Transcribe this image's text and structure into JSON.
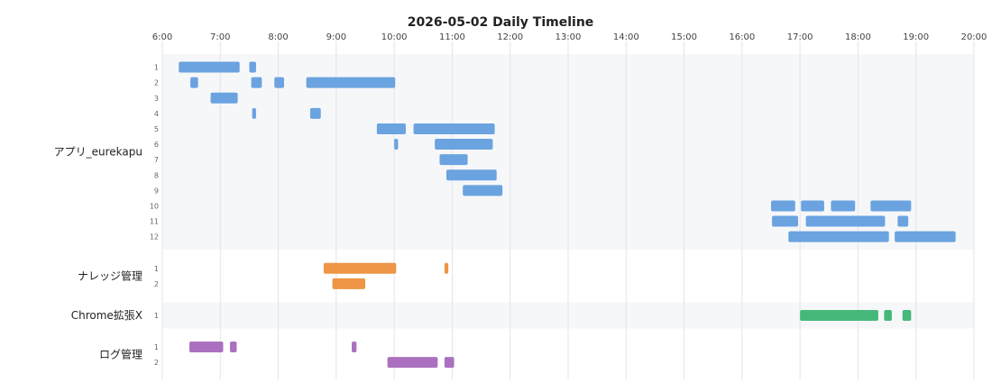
{
  "chart_data": {
    "type": "gantt-timeline",
    "title": "2026-05-02 Daily Timeline",
    "x_ticks": [
      "6:00",
      "7:00",
      "8:00",
      "9:00",
      "10:00",
      "11:00",
      "12:00",
      "13:00",
      "14:00",
      "15:00",
      "16:00",
      "17:00",
      "18:00",
      "19:00",
      "20:00"
    ],
    "x_range": [
      "6:00",
      "20:00"
    ],
    "grid": true,
    "colors": {
      "アプリ_eurekapu": "#6aa3e0",
      "ナレッジ管理": "#ee9546",
      "Chrome拡張X": "#46b87a",
      "ログ管理": "#ab71c0",
      "band": "#f6f7f9",
      "grid": "#e2e4e8"
    },
    "categories": [
      {
        "name": "アプリ_eurekapu",
        "lanes": [
          {
            "label": "1",
            "bars": [
              [
                "6:17",
                "7:20"
              ],
              [
                "7:30",
                "7:37"
              ]
            ]
          },
          {
            "label": "2",
            "bars": [
              [
                "6:29",
                "6:37"
              ],
              [
                "7:32",
                "7:43"
              ],
              [
                "7:56",
                "8:06"
              ],
              [
                "8:29",
                "10:01"
              ]
            ]
          },
          {
            "label": "3",
            "bars": [
              [
                "6:50",
                "7:18"
              ]
            ]
          },
          {
            "label": "4",
            "bars": [
              [
                "7:33",
                "7:37"
              ],
              [
                "8:33",
                "8:44"
              ]
            ]
          },
          {
            "label": "5",
            "bars": [
              [
                "9:42",
                "10:12"
              ],
              [
                "10:20",
                "11:44"
              ]
            ]
          },
          {
            "label": "6",
            "bars": [
              [
                "10:00",
                "10:04"
              ],
              [
                "10:42",
                "11:42"
              ]
            ]
          },
          {
            "label": "7",
            "bars": [
              [
                "10:47",
                "11:16"
              ]
            ]
          },
          {
            "label": "8",
            "bars": [
              [
                "10:54",
                "11:46"
              ]
            ]
          },
          {
            "label": "9",
            "bars": [
              [
                "11:11",
                "11:52"
              ]
            ]
          },
          {
            "label": "10",
            "bars": [
              [
                "16:30",
                "16:55"
              ],
              [
                "17:01",
                "17:25"
              ],
              [
                "17:32",
                "17:57"
              ],
              [
                "18:13",
                "18:55"
              ]
            ]
          },
          {
            "label": "11",
            "bars": [
              [
                "16:31",
                "16:58"
              ],
              [
                "17:06",
                "18:28"
              ],
              [
                "18:41",
                "18:52"
              ]
            ]
          },
          {
            "label": "12",
            "bars": [
              [
                "16:48",
                "18:32"
              ],
              [
                "18:38",
                "19:41"
              ]
            ]
          }
        ]
      },
      {
        "name": "ナレッジ管理",
        "lanes": [
          {
            "label": "1",
            "bars": [
              [
                "8:47",
                "10:02"
              ],
              [
                "10:52",
                "10:56"
              ]
            ]
          },
          {
            "label": "2",
            "bars": [
              [
                "8:56",
                "9:30"
              ]
            ]
          }
        ]
      },
      {
        "name": "Chrome拡張X",
        "lanes": [
          {
            "label": "1",
            "bars": [
              [
                "17:00",
                "18:21"
              ],
              [
                "18:27",
                "18:35"
              ],
              [
                "18:46",
                "18:55"
              ]
            ]
          }
        ]
      },
      {
        "name": "ログ管理",
        "lanes": [
          {
            "label": "1",
            "bars": [
              [
                "6:28",
                "7:03"
              ],
              [
                "7:10",
                "7:17"
              ],
              [
                "9:16",
                "9:21"
              ]
            ]
          },
          {
            "label": "2",
            "bars": [
              [
                "9:53",
                "10:45"
              ],
              [
                "10:52",
                "11:02"
              ]
            ]
          }
        ]
      }
    ]
  }
}
